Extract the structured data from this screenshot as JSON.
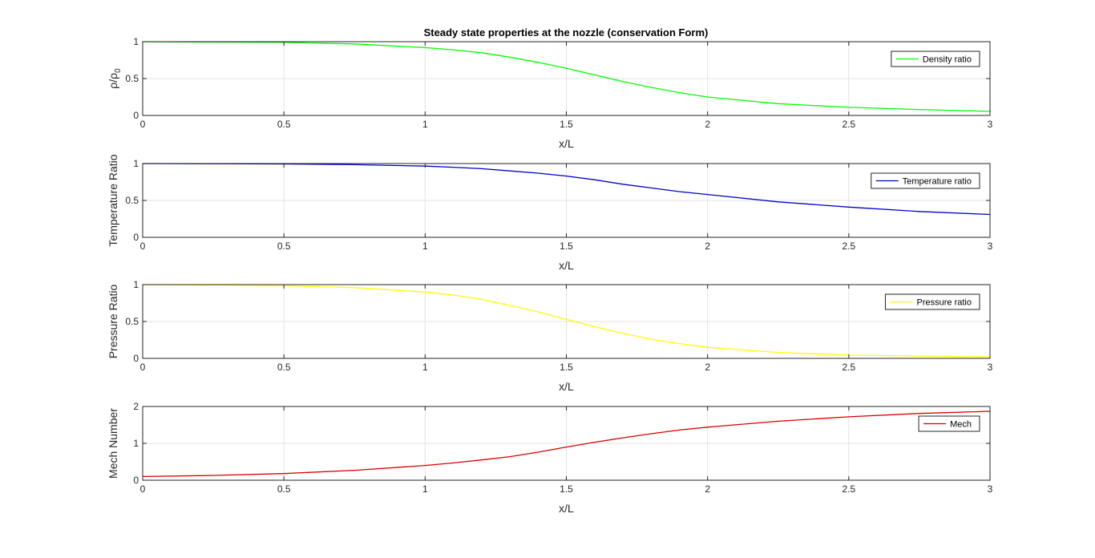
{
  "figure": {
    "title": "Steady state properties at the nozzle (conservation Form)",
    "background": "#ffffff"
  },
  "chart_data": [
    {
      "type": "line",
      "title": "Steady state properties at the nozzle (conservation Form)",
      "xlabel": "x/L",
      "ylabel": "ρ/ρ",
      "ylabel_subscript": "0",
      "xlim": [
        0,
        3
      ],
      "ylim": [
        0,
        1
      ],
      "xticks": [
        0,
        0.5,
        1,
        1.5,
        2,
        2.5,
        3
      ],
      "yticks": [
        0,
        0.5,
        1
      ],
      "grid": true,
      "legend_position": "top-right",
      "series": [
        {
          "name": "Density ratio",
          "color": "#00ff00",
          "x": [
            0,
            0.25,
            0.5,
            0.75,
            1.0,
            1.1,
            1.2,
            1.3,
            1.4,
            1.5,
            1.6,
            1.7,
            1.8,
            1.9,
            2.0,
            2.25,
            2.5,
            2.75,
            3.0
          ],
          "y": [
            1.0,
            0.995,
            0.99,
            0.97,
            0.92,
            0.89,
            0.85,
            0.79,
            0.72,
            0.64,
            0.55,
            0.46,
            0.38,
            0.31,
            0.25,
            0.16,
            0.11,
            0.08,
            0.055
          ]
        }
      ]
    },
    {
      "type": "line",
      "xlabel": "x/L",
      "ylabel": "Temperature Ratio",
      "xlim": [
        0,
        3
      ],
      "ylim": [
        0,
        1
      ],
      "xticks": [
        0,
        0.5,
        1,
        1.5,
        2,
        2.5,
        3
      ],
      "yticks": [
        0,
        0.5,
        1
      ],
      "grid": true,
      "legend_position": "top-right",
      "series": [
        {
          "name": "Temperature ratio",
          "color": "#0000cc",
          "x": [
            0,
            0.25,
            0.5,
            0.75,
            1.0,
            1.1,
            1.2,
            1.3,
            1.4,
            1.5,
            1.6,
            1.7,
            1.8,
            1.9,
            2.0,
            2.25,
            2.5,
            2.75,
            3.0
          ],
          "y": [
            1.0,
            0.998,
            0.995,
            0.985,
            0.965,
            0.95,
            0.93,
            0.9,
            0.87,
            0.83,
            0.78,
            0.72,
            0.67,
            0.62,
            0.58,
            0.48,
            0.41,
            0.35,
            0.31
          ]
        }
      ]
    },
    {
      "type": "line",
      "xlabel": "x/L",
      "ylabel": "Pressure Ratio",
      "xlim": [
        0,
        3
      ],
      "ylim": [
        0,
        1
      ],
      "xticks": [
        0,
        0.5,
        1,
        1.5,
        2,
        2.5,
        3
      ],
      "yticks": [
        0,
        0.5,
        1
      ],
      "grid": true,
      "legend_position": "top-right",
      "series": [
        {
          "name": "Pressure ratio",
          "color": "#ffff00",
          "x": [
            0,
            0.25,
            0.5,
            0.75,
            1.0,
            1.1,
            1.2,
            1.3,
            1.4,
            1.5,
            1.6,
            1.7,
            1.8,
            1.9,
            2.0,
            2.25,
            2.5,
            2.75,
            3.0
          ],
          "y": [
            1.0,
            0.995,
            0.985,
            0.96,
            0.9,
            0.86,
            0.8,
            0.72,
            0.63,
            0.53,
            0.43,
            0.34,
            0.26,
            0.2,
            0.15,
            0.08,
            0.045,
            0.03,
            0.02
          ]
        }
      ]
    },
    {
      "type": "line",
      "xlabel": "x/L",
      "ylabel": "Mech Number",
      "xlim": [
        0,
        3
      ],
      "ylim": [
        0,
        2
      ],
      "xticks": [
        0,
        0.5,
        1,
        1.5,
        2,
        2.5,
        3
      ],
      "yticks": [
        0,
        1,
        2
      ],
      "grid": true,
      "legend_position": "top-right",
      "series": [
        {
          "name": "Mech",
          "color": "#dd0000",
          "x": [
            0,
            0.25,
            0.5,
            0.75,
            1.0,
            1.1,
            1.2,
            1.3,
            1.4,
            1.5,
            1.6,
            1.7,
            1.8,
            1.9,
            2.0,
            2.25,
            2.5,
            2.75,
            3.0
          ],
          "y": [
            0.1,
            0.13,
            0.18,
            0.27,
            0.4,
            0.47,
            0.55,
            0.64,
            0.76,
            0.9,
            1.03,
            1.15,
            1.26,
            1.36,
            1.44,
            1.6,
            1.72,
            1.81,
            1.87
          ]
        }
      ]
    }
  ]
}
